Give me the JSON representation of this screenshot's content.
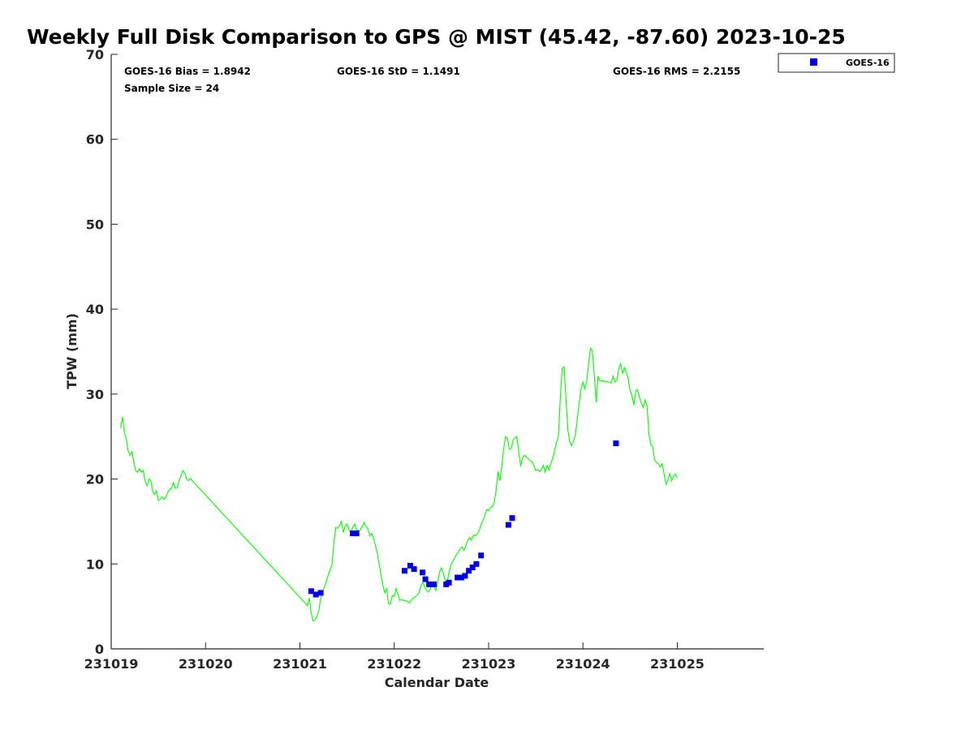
{
  "colors": {
    "gps_line": "#00ff00",
    "goes_marker": "#0000e6",
    "axis": "#262626"
  },
  "chart_data": {
    "type": "scatter",
    "title": "Weekly Full Disk Comparison to GPS @ MIST (45.42, -87.60) 2023-10-25",
    "xlabel": "Calendar Date",
    "ylabel": "TPW (mm)",
    "xlim": [
      "231019",
      "231025 22:00"
    ],
    "ylim": [
      0,
      70
    ],
    "x_ticks": [
      "231019",
      "231020",
      "231021",
      "231022",
      "231023",
      "231024",
      "231025"
    ],
    "y_ticks": [
      0,
      10,
      20,
      30,
      40,
      50,
      60,
      70
    ],
    "grid": false,
    "stats": {
      "bias": "GOES-16 Bias = 1.8942",
      "std": "GOES-16 StD = 1.1491",
      "rms": "GOES-16 RMS = 2.2155",
      "sample_size": "Sample Size = 24"
    },
    "legend": {
      "position": "outside-top-right",
      "entries": [
        "GOES-16"
      ]
    },
    "series": [
      {
        "type": "line",
        "points": [
          [
            19.1,
            26.0
          ],
          [
            19.12,
            27.3
          ],
          [
            19.14,
            25.5
          ],
          [
            19.16,
            24.7
          ],
          [
            19.18,
            23.3
          ],
          [
            19.2,
            22.8
          ],
          [
            19.22,
            23.2
          ],
          [
            19.24,
            22.0
          ],
          [
            19.26,
            21.0
          ],
          [
            19.28,
            20.8
          ],
          [
            19.3,
            21.2
          ],
          [
            19.32,
            20.8
          ],
          [
            19.34,
            21.0
          ],
          [
            19.36,
            19.8
          ],
          [
            19.38,
            19.2
          ],
          [
            19.4,
            20.0
          ],
          [
            19.42,
            19.8
          ],
          [
            19.44,
            18.6
          ],
          [
            19.46,
            18.2
          ],
          [
            19.48,
            18.6
          ],
          [
            19.5,
            17.5
          ],
          [
            19.52,
            17.6
          ],
          [
            19.54,
            17.9
          ],
          [
            19.56,
            17.6
          ],
          [
            19.58,
            17.9
          ],
          [
            19.6,
            18.4
          ],
          [
            19.62,
            18.8
          ],
          [
            19.64,
            18.9
          ],
          [
            19.66,
            19.6
          ],
          [
            19.68,
            18.9
          ],
          [
            19.7,
            19.0
          ],
          [
            19.72,
            19.8
          ],
          [
            19.74,
            20.4
          ],
          [
            19.76,
            21.0
          ],
          [
            19.78,
            20.7
          ],
          [
            19.8,
            20.0
          ],
          [
            19.82,
            19.8
          ],
          [
            19.84,
            20.1
          ],
          [
            19.86,
            19.8
          ],
          [
            21.08,
            5.1
          ],
          [
            21.1,
            6.0
          ],
          [
            21.12,
            4.2
          ],
          [
            21.14,
            3.3
          ],
          [
            21.16,
            3.4
          ],
          [
            21.18,
            3.8
          ],
          [
            21.2,
            4.5
          ],
          [
            21.22,
            5.9
          ],
          [
            21.24,
            6.7
          ],
          [
            21.26,
            7.3
          ],
          [
            21.28,
            7.9
          ],
          [
            21.3,
            8.7
          ],
          [
            21.32,
            9.3
          ],
          [
            21.34,
            9.9
          ],
          [
            21.36,
            12.5
          ],
          [
            21.38,
            14.3
          ],
          [
            21.4,
            14.2
          ],
          [
            21.42,
            14.5
          ],
          [
            21.44,
            15.0
          ],
          [
            21.46,
            13.7
          ],
          [
            21.48,
            14.5
          ],
          [
            21.5,
            14.7
          ],
          [
            21.52,
            14.0
          ],
          [
            21.54,
            13.8
          ],
          [
            21.56,
            14.3
          ],
          [
            21.58,
            14.7
          ],
          [
            21.6,
            14.0
          ],
          [
            21.62,
            13.9
          ],
          [
            21.64,
            14.0
          ],
          [
            21.66,
            14.4
          ],
          [
            21.68,
            14.9
          ],
          [
            21.7,
            14.4
          ],
          [
            21.72,
            14.2
          ],
          [
            21.74,
            13.3
          ],
          [
            21.76,
            13.6
          ],
          [
            21.78,
            13.1
          ],
          [
            21.8,
            12.2
          ],
          [
            21.82,
            11.3
          ],
          [
            21.84,
            10.0
          ],
          [
            21.86,
            8.7
          ],
          [
            21.88,
            7.5
          ],
          [
            21.9,
            6.6
          ],
          [
            21.92,
            7.1
          ],
          [
            21.94,
            5.3
          ],
          [
            21.96,
            5.3
          ],
          [
            21.98,
            6.3
          ],
          [
            22.0,
            6.2
          ],
          [
            22.02,
            7.1
          ],
          [
            22.04,
            6.4
          ],
          [
            22.06,
            5.7
          ],
          [
            22.08,
            5.8
          ],
          [
            22.1,
            5.7
          ],
          [
            22.12,
            5.7
          ],
          [
            22.14,
            5.6
          ],
          [
            22.16,
            5.4
          ],
          [
            22.18,
            5.7
          ],
          [
            22.2,
            6.0
          ],
          [
            22.22,
            6.1
          ],
          [
            22.24,
            6.3
          ],
          [
            22.26,
            6.5
          ],
          [
            22.28,
            7.3
          ],
          [
            22.3,
            7.8
          ],
          [
            22.32,
            7.4
          ],
          [
            22.34,
            6.9
          ],
          [
            22.36,
            6.7
          ],
          [
            22.38,
            7.0
          ],
          [
            22.4,
            7.6
          ],
          [
            22.42,
            7.4
          ],
          [
            22.44,
            6.9
          ],
          [
            22.46,
            7.8
          ],
          [
            22.48,
            9.0
          ],
          [
            22.5,
            9.5
          ],
          [
            22.52,
            8.9
          ],
          [
            22.54,
            8.0
          ],
          [
            22.56,
            7.8
          ],
          [
            22.58,
            8.9
          ],
          [
            22.6,
            9.9
          ],
          [
            22.62,
            10.3
          ],
          [
            22.64,
            10.7
          ],
          [
            22.66,
            11.1
          ],
          [
            22.68,
            11.4
          ],
          [
            22.7,
            11.8
          ],
          [
            22.72,
            12.0
          ],
          [
            22.74,
            11.6
          ],
          [
            22.76,
            12.2
          ],
          [
            22.78,
            12.8
          ],
          [
            22.8,
            13.1
          ],
          [
            22.82,
            12.8
          ],
          [
            22.84,
            13.4
          ],
          [
            22.86,
            13.3
          ],
          [
            22.88,
            13.5
          ],
          [
            22.9,
            13.9
          ],
          [
            22.92,
            14.6
          ],
          [
            22.94,
            15.1
          ],
          [
            22.96,
            15.7
          ],
          [
            22.98,
            16.4
          ],
          [
            23.0,
            16.3
          ],
          [
            23.02,
            16.6
          ],
          [
            23.04,
            16.7
          ],
          [
            23.06,
            17.2
          ],
          [
            23.08,
            18.7
          ],
          [
            23.1,
            20.9
          ],
          [
            23.12,
            19.8
          ],
          [
            23.14,
            21.5
          ],
          [
            23.16,
            23.6
          ],
          [
            23.18,
            25.0
          ],
          [
            23.2,
            24.8
          ],
          [
            23.22,
            23.5
          ],
          [
            23.24,
            23.6
          ],
          [
            23.26,
            24.6
          ],
          [
            23.28,
            24.8
          ],
          [
            23.3,
            25.0
          ],
          [
            23.32,
            23.1
          ],
          [
            23.34,
            21.5
          ],
          [
            23.36,
            22.5
          ],
          [
            23.38,
            22.8
          ],
          [
            23.4,
            22.6
          ],
          [
            23.42,
            22.4
          ],
          [
            23.44,
            22.2
          ],
          [
            23.46,
            22.0
          ],
          [
            23.48,
            21.6
          ],
          [
            23.5,
            21.0
          ],
          [
            23.52,
            21.1
          ],
          [
            23.54,
            20.9
          ],
          [
            23.56,
            21.1
          ],
          [
            23.58,
            21.6
          ],
          [
            23.6,
            20.8
          ],
          [
            23.62,
            21.6
          ],
          [
            23.64,
            21.1
          ],
          [
            23.66,
            21.9
          ],
          [
            23.68,
            22.4
          ],
          [
            23.7,
            23.4
          ],
          [
            23.72,
            24.3
          ],
          [
            23.74,
            25.0
          ],
          [
            23.76,
            29.5
          ],
          [
            23.78,
            33.0
          ],
          [
            23.8,
            33.2
          ],
          [
            23.82,
            29.5
          ],
          [
            23.84,
            25.8
          ],
          [
            23.86,
            24.4
          ],
          [
            23.88,
            23.9
          ],
          [
            23.9,
            24.5
          ],
          [
            23.92,
            25.2
          ],
          [
            23.94,
            27.0
          ],
          [
            23.96,
            29.0
          ],
          [
            23.98,
            30.6
          ],
          [
            24.0,
            31.4
          ],
          [
            24.02,
            30.6
          ],
          [
            24.04,
            31.5
          ],
          [
            24.06,
            33.6
          ],
          [
            24.08,
            35.4
          ],
          [
            24.1,
            35.1
          ],
          [
            24.12,
            32.3
          ],
          [
            24.14,
            29.0
          ],
          [
            24.16,
            32.1
          ],
          [
            24.18,
            31.6
          ],
          [
            24.2,
            31.5
          ],
          [
            24.22,
            31.6
          ],
          [
            24.24,
            31.4
          ],
          [
            24.26,
            31.5
          ],
          [
            24.28,
            31.4
          ],
          [
            24.3,
            31.3
          ],
          [
            24.32,
            32.1
          ],
          [
            24.34,
            31.4
          ],
          [
            24.36,
            31.6
          ],
          [
            24.38,
            33.0
          ],
          [
            24.4,
            33.6
          ],
          [
            24.42,
            32.4
          ],
          [
            24.44,
            33.1
          ],
          [
            24.46,
            32.6
          ],
          [
            24.48,
            31.8
          ],
          [
            24.5,
            30.4
          ],
          [
            24.52,
            29.8
          ],
          [
            24.54,
            28.7
          ],
          [
            24.56,
            30.4
          ],
          [
            24.58,
            30.5
          ],
          [
            24.6,
            29.6
          ],
          [
            24.62,
            28.9
          ],
          [
            24.64,
            28.4
          ],
          [
            24.66,
            29.3
          ],
          [
            24.68,
            28.6
          ],
          [
            24.7,
            25.2
          ],
          [
            24.72,
            24.0
          ],
          [
            24.74,
            23.8
          ],
          [
            24.76,
            22.3
          ],
          [
            24.78,
            21.9
          ],
          [
            24.8,
            21.8
          ],
          [
            24.82,
            21.4
          ],
          [
            24.84,
            21.8
          ],
          [
            24.86,
            20.6
          ],
          [
            24.88,
            19.4
          ],
          [
            24.9,
            19.8
          ],
          [
            24.92,
            20.7
          ],
          [
            24.94,
            19.8
          ],
          [
            24.96,
            20.3
          ],
          [
            24.98,
            20.6
          ],
          [
            25.0,
            20.1
          ]
        ]
      },
      {
        "name": "GOES-16",
        "type": "scatter",
        "points": [
          [
            21.12,
            6.8
          ],
          [
            21.17,
            6.4
          ],
          [
            21.22,
            6.6
          ],
          [
            21.56,
            13.6
          ],
          [
            21.6,
            13.6
          ],
          [
            22.11,
            9.2
          ],
          [
            22.17,
            9.8
          ],
          [
            22.21,
            9.4
          ],
          [
            22.3,
            9.0
          ],
          [
            22.33,
            8.2
          ],
          [
            22.37,
            7.6
          ],
          [
            22.42,
            7.6
          ],
          [
            22.55,
            7.6
          ],
          [
            22.58,
            7.8
          ],
          [
            22.67,
            8.4
          ],
          [
            22.71,
            8.4
          ],
          [
            22.75,
            8.6
          ],
          [
            22.79,
            9.2
          ],
          [
            22.83,
            9.6
          ],
          [
            22.87,
            10.0
          ],
          [
            22.92,
            11.0
          ],
          [
            23.21,
            14.6
          ],
          [
            23.25,
            15.4
          ],
          [
            24.35,
            24.2
          ]
        ]
      }
    ]
  }
}
